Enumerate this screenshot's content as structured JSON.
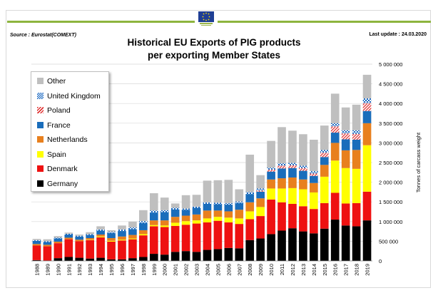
{
  "header": {
    "source": "Source : Eurostat(COMEXT)",
    "last_update": "Last update : 24.03.2020",
    "title_line1": "Historical EU Exports of PIG products",
    "title_line2": "per exporting Member States"
  },
  "colors": {
    "Germany": "#000000",
    "Denmark": "#ee1111",
    "Spain": "#ffff00",
    "Netherlands": "#e8801e",
    "France": "#1a6dbb",
    "Poland": "#e03131",
    "United Kingdom": "#1565c0",
    "Other": "#bfbfbf"
  },
  "chart_data": {
    "type": "bar",
    "stacked": true,
    "categories": [
      "1988",
      "1989",
      "1990",
      "1991",
      "1992",
      "1993",
      "1994",
      "1995",
      "1996",
      "1997",
      "1998",
      "1999",
      "2000",
      "2001",
      "2002",
      "2003",
      "2004",
      "2005",
      "2006",
      "2007",
      "2008",
      "2009",
      "2010",
      "2011",
      "2012",
      "2013",
      "2014",
      "2015",
      "2016",
      "2017",
      "2018",
      "2019"
    ],
    "series": [
      {
        "name": "Germany",
        "values": [
          20000,
          10000,
          70000,
          100000,
          80000,
          60000,
          80000,
          40000,
          40000,
          70000,
          100000,
          180000,
          160000,
          230000,
          250000,
          230000,
          280000,
          300000,
          330000,
          320000,
          530000,
          570000,
          680000,
          770000,
          830000,
          750000,
          700000,
          820000,
          1050000,
          900000,
          880000,
          1030000
        ]
      },
      {
        "name": "Denmark",
        "values": [
          370000,
          360000,
          380000,
          450000,
          420000,
          470000,
          520000,
          450000,
          480000,
          480000,
          550000,
          700000,
          700000,
          660000,
          670000,
          720000,
          700000,
          720000,
          650000,
          620000,
          530000,
          570000,
          880000,
          720000,
          620000,
          640000,
          620000,
          650000,
          680000,
          560000,
          590000,
          730000
        ]
      },
      {
        "name": "Spain",
        "values": [
          0,
          0,
          0,
          0,
          0,
          10000,
          20000,
          20000,
          20000,
          20000,
          30000,
          30000,
          40000,
          80000,
          90000,
          80000,
          100000,
          100000,
          120000,
          140000,
          200000,
          230000,
          280000,
          350000,
          400000,
          430000,
          420000,
          670000,
          820000,
          900000,
          870000,
          1180000
        ]
      },
      {
        "name": "Netherlands",
        "values": [
          40000,
          40000,
          40000,
          40000,
          40000,
          40000,
          50000,
          70000,
          80000,
          90000,
          100000,
          120000,
          130000,
          150000,
          140000,
          150000,
          200000,
          160000,
          160000,
          220000,
          230000,
          220000,
          230000,
          260000,
          270000,
          250000,
          240000,
          300000,
          450000,
          450000,
          480000,
          560000
        ]
      },
      {
        "name": "France",
        "values": [
          80000,
          70000,
          80000,
          80000,
          80000,
          80000,
          100000,
          130000,
          140000,
          150000,
          180000,
          200000,
          210000,
          190000,
          150000,
          170000,
          170000,
          160000,
          170000,
          170000,
          210000,
          170000,
          200000,
          250000,
          240000,
          220000,
          180000,
          200000,
          260000,
          280000,
          260000,
          310000
        ]
      },
      {
        "name": "Poland",
        "values": [
          0,
          0,
          0,
          0,
          0,
          0,
          0,
          0,
          0,
          0,
          0,
          0,
          0,
          0,
          0,
          0,
          0,
          0,
          0,
          0,
          0,
          30000,
          50000,
          70000,
          70000,
          70000,
          60000,
          110000,
          160000,
          150000,
          150000,
          200000
        ]
      },
      {
        "name": "United Kingdom",
        "values": [
          20000,
          20000,
          20000,
          20000,
          20000,
          20000,
          30000,
          30000,
          40000,
          40000,
          50000,
          50000,
          50000,
          40000,
          30000,
          30000,
          40000,
          40000,
          40000,
          40000,
          50000,
          50000,
          50000,
          60000,
          60000,
          60000,
          60000,
          70000,
          80000,
          80000,
          90000,
          120000
        ]
      },
      {
        "name": "Other",
        "values": [
          30000,
          50000,
          40000,
          30000,
          30000,
          50000,
          80000,
          40000,
          100000,
          150000,
          280000,
          440000,
          320000,
          110000,
          340000,
          300000,
          550000,
          570000,
          590000,
          310000,
          950000,
          340000,
          680000,
          920000,
          820000,
          800000,
          800000,
          620000,
          750000,
          580000,
          650000,
          600000
        ]
      }
    ],
    "ylabel": "Tonnes of carcass weight",
    "ylim": [
      0,
      5000000
    ],
    "yticks": [
      0,
      500000,
      1000000,
      1500000,
      2000000,
      2500000,
      3000000,
      3500000,
      4000000,
      4500000,
      5000000
    ],
    "ytick_labels": [
      "0",
      "500 000",
      "1 000 000",
      "1 500 000",
      "2 000 000",
      "2 500 000",
      "3 000 000",
      "3 500 000",
      "4 000 000",
      "4 500 000",
      "5 000 000"
    ],
    "y_axis_side": "right",
    "grid": true,
    "legend_position": "top-left",
    "legend_order": [
      "Other",
      "United Kingdom",
      "Poland",
      "France",
      "Netherlands",
      "Spain",
      "Denmark",
      "Germany"
    ]
  }
}
